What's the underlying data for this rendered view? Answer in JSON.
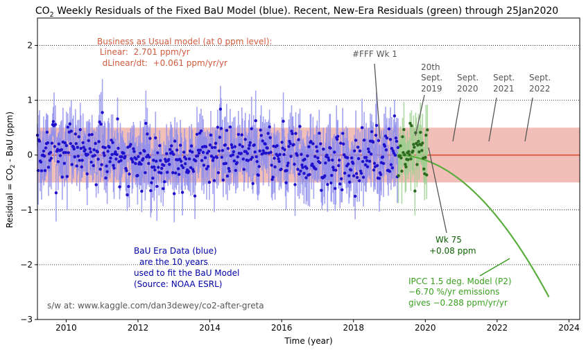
{
  "chart_data": {
    "type": "scatter",
    "title_prefix": "CO",
    "title_sub": "2",
    "title_suffix": " Weekly Residuals of the Fixed BaU Model (blue).  Recent, New-Era Residuals (green) through 25Jan2020",
    "xlabel": "Time (year)",
    "ylabel_prefix": "Residual = CO",
    "ylabel_sub": "2",
    "ylabel_suffix": " - BaU (ppm)",
    "xlim": [
      2009.2,
      2024.3
    ],
    "ylim": [
      -3,
      2.5
    ],
    "x_ticks": [
      2010,
      2012,
      2014,
      2016,
      2018,
      2020,
      2022,
      2024
    ],
    "x_tick_labels": [
      "2010",
      "2012",
      "2014",
      "2016",
      "2018",
      "2020",
      "2022",
      "2024"
    ],
    "y_ticks": [
      -3,
      -2,
      -1,
      0,
      1,
      2
    ],
    "y_tick_labels": [
      "−3",
      "−2",
      "−1",
      "0",
      "1",
      "2"
    ],
    "dotted_gridlines_y": [
      -2,
      -1,
      1,
      2
    ],
    "band": {
      "ymin": -0.5,
      "ymax": 0.5,
      "color": "#f2bfb8"
    },
    "bau_line": {
      "y": 0,
      "color": "#e0604a"
    },
    "colors": {
      "bau_points": "#1f10cc",
      "bau_errorbars": "#8c8cee",
      "new_points": "#2e6b1e",
      "new_errorbars": "#9ad08f",
      "ipcc_curve": "#5aad3c",
      "bau_text": "#d05a3e",
      "blue_text": "#0000aa",
      "green_text": "#3aa020",
      "dark_green_text": "#0c5e00",
      "gray_text": "#555555"
    },
    "series": [
      {
        "name": "BaU Era Data (blue)",
        "x_start": 2009.2,
        "x_end": 2019.25,
        "weeks_per_year": 52,
        "spread_ppm": 0.55,
        "seed": 7
      },
      {
        "name": "Recent, New-Era Residuals (green)",
        "x_start": 2019.25,
        "x_end": 2020.07,
        "weeks_per_year": 52,
        "spread_ppm": 0.5,
        "seed": 11
      }
    ],
    "ipcc_model": {
      "name": "IPCC 1.5 deg. Model (P2)",
      "x_start": 2019.2,
      "x_end": 2023.45,
      "quad_coef": -0.144
    },
    "annotations": {
      "bau_model": [
        "Business as Usual model (at 0 ppm level):",
        " Linear:  2.701 ppm/yr",
        "  dLinear/dt:  +0.061 ppm/yr/yr"
      ],
      "bau_era": [
        "BaU Era Data (blue)",
        "are the 10 years",
        "used to fit the BaU Model",
        "(Source: NOAA ESRL)"
      ],
      "ipcc": [
        "IPCC 1.5 deg. Model (P2)",
        "−6.70 %/yr emissions",
        "gives −0.288 ppm/yr/yr"
      ],
      "credit": "s/w at: www.kaggle.com/dan3dewey/co2-after-greta",
      "fff_week": "#FFF Wk 1",
      "week75": [
        "Wk 75",
        "+0.08 ppm"
      ],
      "september_marks": [
        {
          "lines": [
            "20th",
            "Sept.",
            "2019"
          ],
          "x": 2019.72
        },
        {
          "lines": [
            "Sept.",
            "2020"
          ],
          "x": 2020.72
        },
        {
          "lines": [
            "Sept.",
            "2021"
          ],
          "x": 2021.72
        },
        {
          "lines": [
            "Sept.",
            "2022"
          ],
          "x": 2022.72
        }
      ]
    }
  }
}
